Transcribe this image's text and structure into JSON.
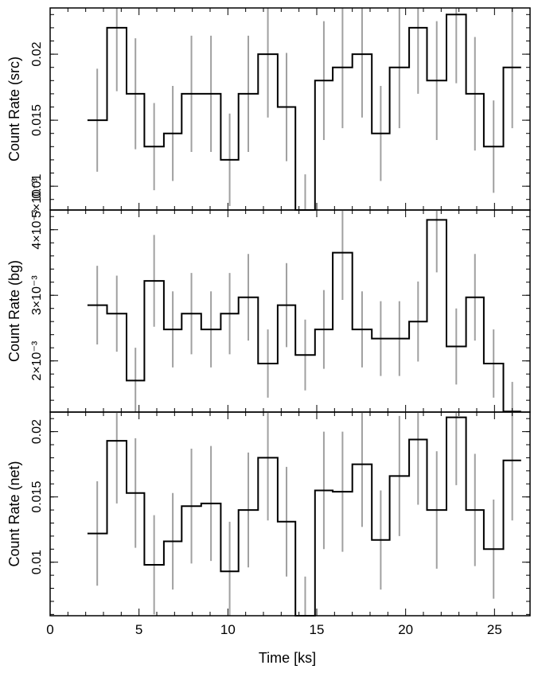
{
  "chart_data": {
    "type": "line",
    "xlabel": "Time [ks]",
    "xlim": [
      0,
      27
    ],
    "x_ticks": [
      {
        "value": 0,
        "label": "0"
      },
      {
        "value": 5,
        "label": "5"
      },
      {
        "value": 10,
        "label": "10"
      },
      {
        "value": 15,
        "label": "15"
      },
      {
        "value": 20,
        "label": "20"
      },
      {
        "value": 25,
        "label": "25"
      }
    ],
    "panels": [
      {
        "id": "src",
        "ylabel": "Count Rate (src)",
        "ylim": [
          0.0082,
          0.0235
        ],
        "yticks": [
          {
            "value": 0.01,
            "label": "0.01"
          },
          {
            "value": 0.015,
            "label": "0.015"
          },
          {
            "value": 0.02,
            "label": "0.02"
          }
        ],
        "corner_label": "5×10⁻³",
        "bin_edges": [
          2.1,
          3.2,
          4.3,
          5.3,
          6.4,
          7.4,
          8.5,
          9.6,
          10.6,
          11.7,
          12.8,
          13.8,
          14.9,
          15.9,
          17.0,
          18.1,
          19.1,
          20.2,
          21.2,
          22.3,
          23.4,
          24.4,
          25.5,
          26.5
        ],
        "values": [
          0.015,
          0.022,
          0.017,
          0.013,
          0.014,
          0.017,
          0.017,
          0.012,
          0.017,
          0.02,
          0.016,
          0.0082,
          0.018,
          0.019,
          0.02,
          0.014,
          0.019,
          0.022,
          0.018,
          0.023,
          0.017,
          0.013,
          0.019
        ],
        "errors": [
          0.0039,
          0.0048,
          0.0042,
          0.0033,
          0.0036,
          0.0044,
          0.0044,
          0.0035,
          0.0044,
          0.0048,
          0.0041,
          0.0027,
          0.0045,
          0.0046,
          0.0048,
          0.0036,
          0.0046,
          0.005,
          0.0045,
          0.0052,
          0.0043,
          0.0035,
          0.0046
        ]
      },
      {
        "id": "bg",
        "ylabel": "Count Rate (bg)",
        "ylim": [
          0.00122,
          0.0043
        ],
        "yticks": [
          {
            "value": 0.002,
            "label": "2×10⁻³"
          },
          {
            "value": 0.003,
            "label": "3×10⁻³"
          },
          {
            "value": 0.004,
            "label": "4×10⁻³"
          }
        ],
        "bin_edges": [
          2.1,
          3.2,
          4.3,
          5.3,
          6.4,
          7.4,
          8.5,
          9.6,
          10.6,
          11.7,
          12.8,
          13.8,
          14.9,
          15.9,
          17.0,
          18.1,
          19.1,
          20.2,
          21.2,
          22.3,
          23.4,
          24.4,
          25.5,
          26.5
        ],
        "values": [
          0.00285,
          0.00272,
          0.0017,
          0.00322,
          0.00248,
          0.00272,
          0.00248,
          0.00272,
          0.00297,
          0.00196,
          0.00285,
          0.00209,
          0.00248,
          0.00365,
          0.00248,
          0.00234,
          0.00234,
          0.0026,
          0.00415,
          0.00222,
          0.00297,
          0.00196,
          0.00123
        ],
        "errors": [
          0.0006,
          0.00058,
          0.0005,
          0.0007,
          0.00058,
          0.00062,
          0.00058,
          0.00062,
          0.00066,
          0.00052,
          0.00064,
          0.00054,
          0.0006,
          0.00072,
          0.00058,
          0.00057,
          0.00057,
          0.00061,
          0.0008,
          0.00058,
          0.00066,
          0.00052,
          0.00045
        ]
      },
      {
        "id": "net",
        "ylabel": "Count Rate (net)",
        "ylim": [
          0.0059,
          0.0215
        ],
        "yticks": [
          {
            "value": 0.01,
            "label": "0.01"
          },
          {
            "value": 0.015,
            "label": "0.015"
          },
          {
            "value": 0.02,
            "label": "0.02"
          }
        ],
        "bin_edges": [
          2.1,
          3.2,
          4.3,
          5.3,
          6.4,
          7.4,
          8.5,
          9.6,
          10.6,
          11.7,
          12.8,
          13.8,
          14.9,
          15.9,
          17.0,
          18.1,
          19.1,
          20.2,
          21.2,
          22.3,
          23.4,
          24.4,
          25.5,
          26.5
        ],
        "values": [
          0.0122,
          0.0193,
          0.0153,
          0.0098,
          0.0116,
          0.0143,
          0.0145,
          0.0093,
          0.014,
          0.018,
          0.0131,
          0.0059,
          0.0155,
          0.0154,
          0.0175,
          0.0117,
          0.0166,
          0.0194,
          0.014,
          0.0211,
          0.014,
          0.011,
          0.0178
        ],
        "errors": [
          0.004,
          0.0048,
          0.0042,
          0.0038,
          0.0037,
          0.0044,
          0.0044,
          0.0038,
          0.0044,
          0.0048,
          0.0042,
          0.003,
          0.0045,
          0.0046,
          0.0048,
          0.0038,
          0.0046,
          0.005,
          0.0045,
          0.0052,
          0.0043,
          0.0038,
          0.0046
        ]
      }
    ],
    "colors": {
      "step": "#000000",
      "errorbar": "#a0a0a0",
      "frame": "#000000"
    }
  }
}
